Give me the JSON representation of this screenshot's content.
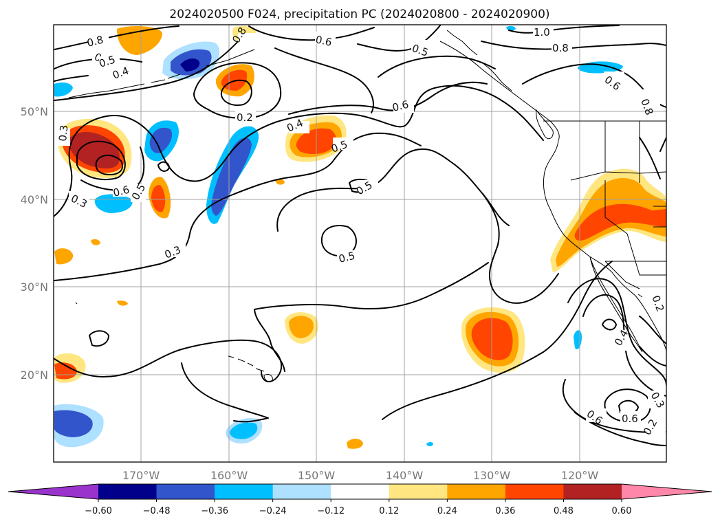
{
  "title": "2024020500 F024, precipitation PC (2024020800 - 2024020900)",
  "latitude_labels": [
    "50°N",
    "40°N",
    "30°N",
    "20°N"
  ],
  "longitude_labels": [
    "170°W",
    "160°W",
    "150°W",
    "140°W",
    "130°W",
    "120°W"
  ],
  "colorbar": {
    "tick_labels": [
      "−0.60",
      "−0.48",
      "−0.36",
      "−0.24",
      "−0.12",
      "0.12",
      "0.24",
      "0.36",
      "0.48",
      "0.60"
    ],
    "colors": [
      "#9933cc",
      "#00008b",
      "#3355cc",
      "#00bfff",
      "#aee0ff",
      "#ffffff",
      "#ffe680",
      "#ffa500",
      "#ff4500",
      "#b22222",
      "#ff88aa"
    ]
  },
  "contour_labels": [
    "0.8",
    "0.6",
    "0.5",
    "0.4",
    "0.3",
    "0.2",
    "0.8",
    "0.5",
    "0.6",
    "1.0",
    "0.8",
    "0.6",
    "0.8",
    "0.6",
    "0.2",
    "0.4",
    "0.5",
    "0.5",
    "0.6",
    "0.3",
    "0.5",
    "0.3",
    "0.4",
    "0.3",
    "0.6",
    "0.5",
    "0.2",
    "0.6"
  ],
  "shading_colors": {
    "pos_light": "#ffe680",
    "pos_mid": "#ffa500",
    "pos_strong": "#ff4500",
    "pos_max": "#b22222",
    "neg_light": "#aee0ff",
    "neg_mid": "#00bfff",
    "neg_strong": "#3355cc",
    "neg_max": "#00008b"
  }
}
